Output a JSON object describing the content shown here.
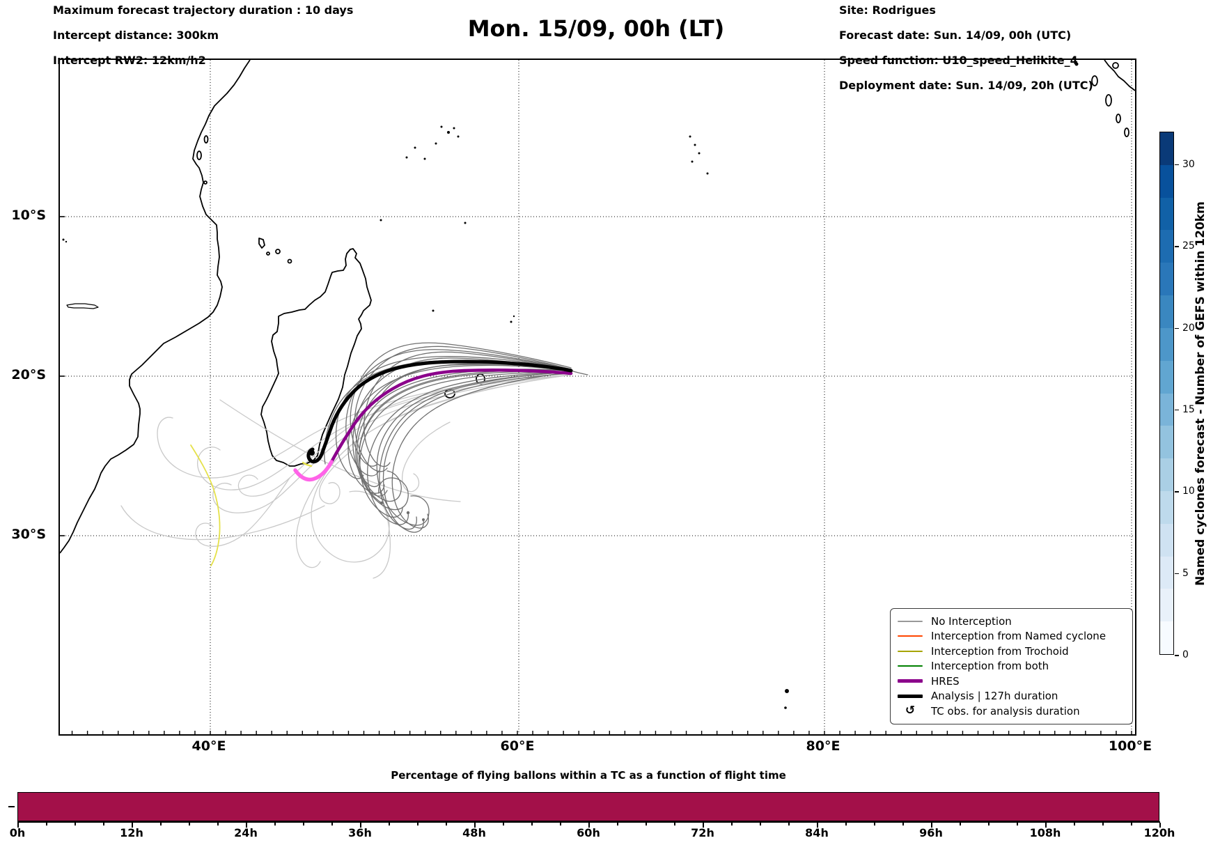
{
  "header": {
    "left_lines": [
      "Maximum forecast trajectory duration : 10 days",
      "Intercept distance: 300km",
      "Intercept RW2: 12km/h2"
    ],
    "title": "Mon. 15/09, 00h (LT)",
    "right_lines": [
      "Site: Rodrigues",
      "Forecast date: Sun. 14/09, 00h (UTC)",
      "Speed function: U10_speed_Helikite_4",
      "Deployment date: Sun. 14/09, 20h (UTC)"
    ]
  },
  "map": {
    "x_ticks": [
      "40°E",
      "60°E",
      "80°E",
      "100°E"
    ],
    "y_ticks": [
      "10°S",
      "20°S",
      "30°S"
    ],
    "legend": [
      {
        "label": "No Interception",
        "color": "#999999",
        "thick": 2
      },
      {
        "label": "Interception from Named cyclone",
        "color": "#ff4500",
        "thick": 2
      },
      {
        "label": "Interception from Trochoid",
        "color": "#a6a400",
        "thick": 2
      },
      {
        "label": "Interception from both",
        "color": "#008000",
        "thick": 2
      },
      {
        "label": "HRES",
        "color": "#8b008b",
        "thick": 5
      },
      {
        "label": "Analysis | 127h duration",
        "color": "#000000",
        "thick": 5
      },
      {
        "label": "TC obs. for analysis duration",
        "symbol": "↺"
      }
    ],
    "line_colors": {
      "no_interception_dark": "#6f6f6f",
      "no_interception_light": "#c9c9c9",
      "trochoid_track": "#e5e14a",
      "hres": "#8b008b",
      "hres_tail": "#ff63e8",
      "analysis": "#000000"
    }
  },
  "colorbar": {
    "label": "Named cyclones forecast - Number of GEFS within 120km",
    "tick_labels": [
      "30",
      "25",
      "20",
      "15",
      "10",
      "5",
      "0"
    ],
    "vmin": 0,
    "vmax": 32,
    "segment_colors_top_to_bottom": [
      "#0a3a78",
      "#08519c",
      "#1161a7",
      "#1d6cb1",
      "#2a77b9",
      "#3a87c0",
      "#4d97c9",
      "#61a6d1",
      "#7ab4d9",
      "#93c3df",
      "#aacfe5",
      "#bedaec",
      "#cfe2f2",
      "#ddeaf7",
      "#e9f1fa",
      "#f7fbff"
    ]
  },
  "bottom_chart": {
    "title": "Percentage of flying ballons within a TC as a function of flight time",
    "x_ticks": [
      "0h",
      "12h",
      "24h",
      "36h",
      "48h",
      "60h",
      "72h",
      "84h",
      "96h",
      "108h",
      "120h"
    ],
    "bar_color": "#a31049"
  },
  "chart_data": [
    {
      "type": "line",
      "name": "balloon-trajectory-map",
      "title": "Mon. 15/09, 00h (LT)",
      "description": "Ensemble balloon drift trajectories launched near Rodrigues (about 63.4E, 19.7S), drifting west just north of 20S toward the Madagascar east coast, then curving south; secondary light-gray tracks loop south of Madagascar and into the Mozambique Channel.",
      "x_axis": {
        "tick_labels": [
          "40°E",
          "60°E",
          "80°E",
          "100°E"
        ],
        "range_deg_e": [
          30.2,
          100.2
        ]
      },
      "y_axis": {
        "tick_labels": [
          "10°S",
          "20°S",
          "30°S"
        ],
        "range_deg_s": [
          0.2,
          42.4
        ]
      },
      "series": [
        {
          "name": "No Interception",
          "style": "thin gray ensemble",
          "approx_count": 32
        },
        {
          "name": "Interception from Named cyclone",
          "style": "orangered",
          "approx_count": 0
        },
        {
          "name": "Interception from Trochoid",
          "style": "yellow arc near 40E between 24S and 31S",
          "approx_count": 1
        },
        {
          "name": "Interception from both",
          "style": "green",
          "approx_count": 0
        },
        {
          "name": "HRES",
          "style": "thick purple fading to pink at its southern end near 46E 26S",
          "approx_count": 1
        },
        {
          "name": "Analysis | 127h duration",
          "style": "thick black ending near 47E 25S",
          "approx_count": 1
        }
      ]
    },
    {
      "type": "bar",
      "title": "Percentage of flying ballons within a TC as a function of flight time",
      "x_hours_range": [
        0,
        120
      ],
      "x_major_tick_step_hours": 12,
      "x_minor_tick_step_hours": 3,
      "value_percent_constant": 100,
      "bar_color": "#a31049"
    },
    {
      "type": "heatmap",
      "name": "colorbar-scale",
      "title": "Named cyclones forecast - Number of GEFS within 120km",
      "scale_ticks": [
        0,
        5,
        10,
        15,
        20,
        25,
        30
      ],
      "range": [
        0,
        32
      ],
      "colormap": "Blues (discrete, 16 steps)"
    }
  ]
}
